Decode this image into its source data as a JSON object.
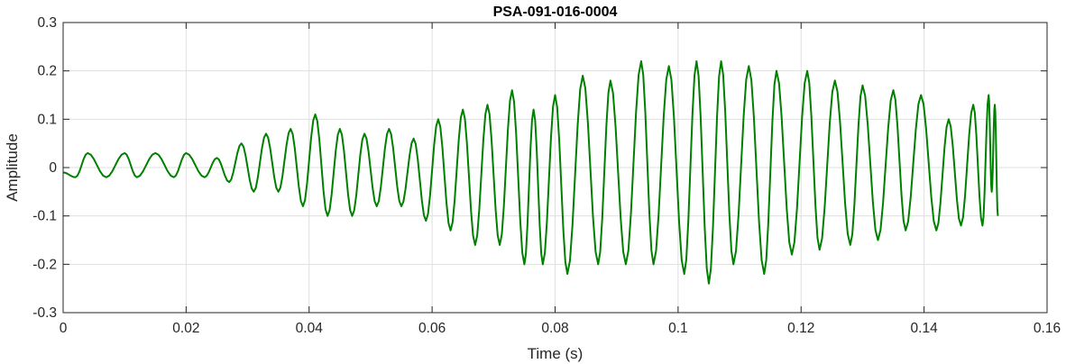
{
  "chart_data": {
    "type": "line",
    "title": "PSA-091-016-0004",
    "xlabel": "Time (s)",
    "ylabel": "Amplitude",
    "xlim": [
      0,
      0.16
    ],
    "ylim": [
      -0.3,
      0.3
    ],
    "grid": true,
    "x_ticks": [
      0,
      0.02,
      0.04,
      0.06,
      0.08,
      0.1,
      0.12,
      0.14,
      0.16
    ],
    "x_tick_labels": [
      "0",
      "0.02",
      "0.04",
      "0.06",
      "0.08",
      "0.1",
      "0.12",
      "0.14",
      "0.16"
    ],
    "y_ticks": [
      -0.3,
      -0.2,
      -0.1,
      0,
      0.1,
      0.2,
      0.3
    ],
    "y_tick_labels": [
      "-0.3",
      "-0.2",
      "-0.1",
      "0",
      "0.1",
      "0.2",
      "0.3"
    ],
    "series": [
      {
        "color": "#008000",
        "x": [
          0,
          0.002,
          0.004,
          0.007,
          0.01,
          0.012,
          0.015,
          0.018,
          0.02,
          0.023,
          0.025,
          0.027,
          0.029,
          0.031,
          0.033,
          0.035,
          0.037,
          0.039,
          0.041,
          0.043,
          0.045,
          0.047,
          0.049,
          0.051,
          0.053,
          0.055,
          0.057,
          0.059,
          0.061,
          0.063,
          0.065,
          0.067,
          0.069,
          0.071,
          0.073,
          0.075,
          0.0765,
          0.078,
          0.08,
          0.082,
          0.0845,
          0.087,
          0.089,
          0.0915,
          0.094,
          0.096,
          0.0985,
          0.101,
          0.103,
          0.105,
          0.107,
          0.109,
          0.1115,
          0.114,
          0.116,
          0.1185,
          0.121,
          0.123,
          0.1255,
          0.128,
          0.13,
          0.1325,
          0.135,
          0.137,
          0.1395,
          0.142,
          0.144,
          0.146,
          0.148,
          0.1495,
          0.1505,
          0.151,
          0.1515,
          0.152
        ],
        "y": [
          -0.01,
          -0.02,
          0.03,
          -0.02,
          0.03,
          -0.02,
          0.03,
          -0.02,
          0.03,
          -0.02,
          0.02,
          -0.03,
          0.05,
          -0.05,
          0.07,
          -0.05,
          0.08,
          -0.08,
          0.11,
          -0.1,
          0.08,
          -0.1,
          0.07,
          -0.08,
          0.08,
          -0.08,
          0.06,
          -0.11,
          0.1,
          -0.13,
          0.12,
          -0.16,
          0.13,
          -0.16,
          0.16,
          -0.2,
          0.12,
          -0.2,
          0.15,
          -0.22,
          0.19,
          -0.2,
          0.18,
          -0.2,
          0.22,
          -0.2,
          0.21,
          -0.22,
          0.22,
          -0.24,
          0.22,
          -0.2,
          0.21,
          -0.22,
          0.2,
          -0.18,
          0.2,
          -0.17,
          0.18,
          -0.16,
          0.17,
          -0.15,
          0.16,
          -0.13,
          0.15,
          -0.13,
          0.1,
          -0.12,
          0.13,
          -0.12,
          0.15,
          -0.05,
          0.13,
          -0.1
        ]
      }
    ]
  }
}
